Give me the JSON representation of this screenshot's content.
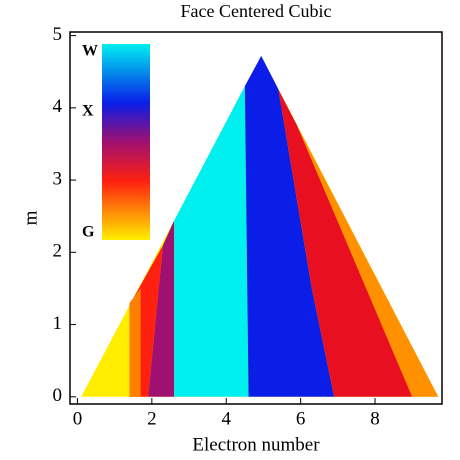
{
  "chart_data": {
    "type": "region",
    "title": "Face Centered Cubic",
    "xlabel": "Electron number",
    "ylabel": "m",
    "xlim": [
      -0.2,
      9.8
    ],
    "ylim": [
      -0.1,
      5.05
    ],
    "xticks": [
      0,
      2,
      4,
      6,
      8
    ],
    "yticks": [
      0,
      1,
      2,
      3,
      4,
      5
    ],
    "colorbar_labels": [
      "W",
      "X",
      "G"
    ],
    "regions": [
      {
        "color": "#ffee00",
        "x": [
          0.1,
          4.94,
          9.7
        ],
        "y": [
          0,
          4.72,
          0
        ]
      },
      {
        "color": "#ff2010",
        "x": [
          1.4,
          1.4,
          2.3,
          1.9
        ],
        "y": [
          0,
          1.27,
          2.1,
          0
        ]
      },
      {
        "color": "#ff8000",
        "x": [
          1.4,
          1.4,
          1.7,
          1.7
        ],
        "y": [
          0,
          1.3,
          1.5,
          0
        ]
      },
      {
        "color": "#a01070",
        "x": [
          1.9,
          2.3,
          2.6,
          2.6
        ],
        "y": [
          0,
          2.1,
          2.44,
          0
        ]
      },
      {
        "color": "#00f0f0",
        "x": [
          2.6,
          2.6,
          4.5,
          4.6
        ],
        "y": [
          0,
          2.44,
          4.3,
          0
        ]
      },
      {
        "color": "#0a1ee8",
        "x": [
          4.6,
          4.5,
          4.94,
          5.4,
          6.3,
          6.9
        ],
        "y": [
          0,
          4.3,
          4.72,
          4.26,
          1.5,
          0
        ]
      },
      {
        "color": "#e81020",
        "x": [
          6.9,
          6.3,
          5.4,
          5.9,
          9.0
        ],
        "y": [
          0,
          1.5,
          4.26,
          3.76,
          0
        ]
      },
      {
        "color": "#ff9000",
        "x": [
          9.0,
          5.9,
          9.7
        ],
        "y": [
          0,
          3.76,
          0
        ]
      }
    ]
  }
}
